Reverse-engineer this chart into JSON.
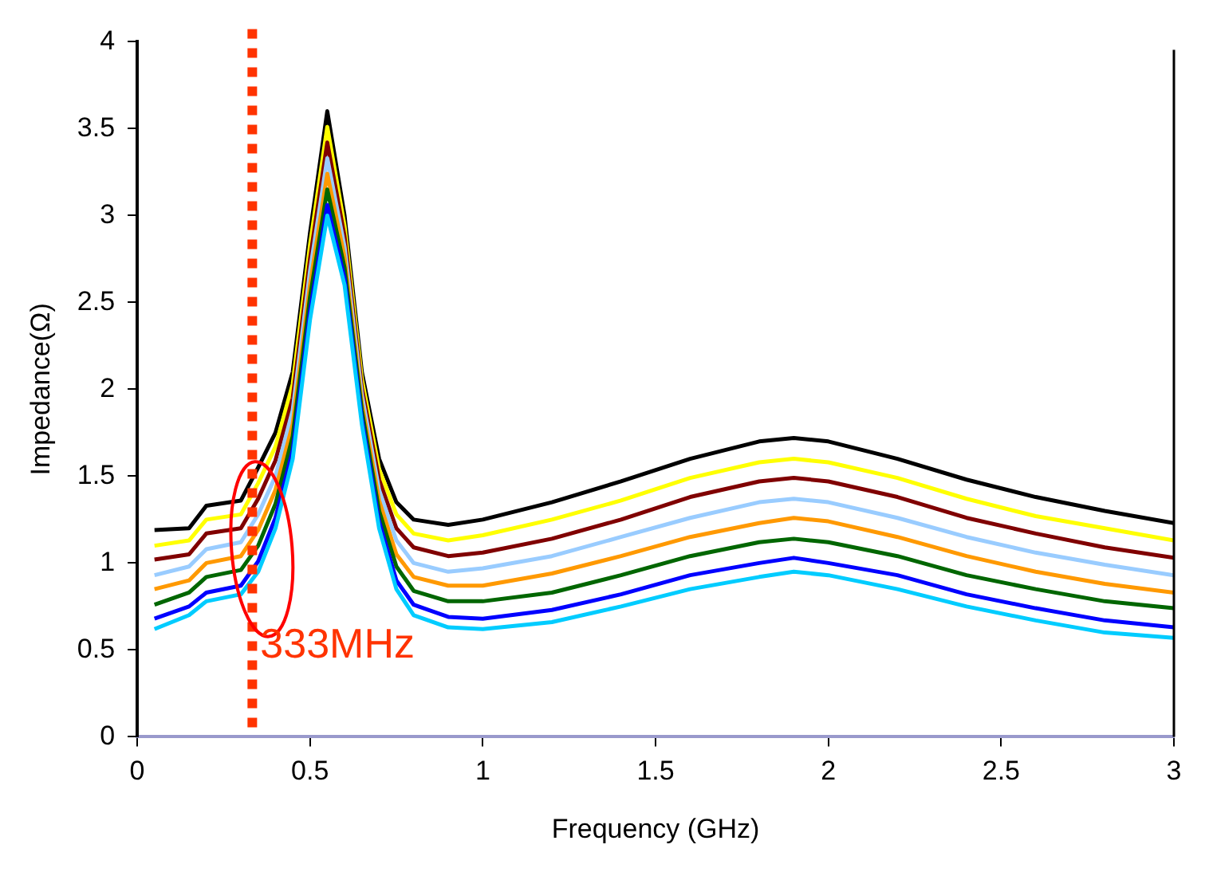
{
  "chart_data": {
    "type": "line",
    "xlabel": "Frequency (GHz)",
    "ylabel": "Impedance(Ω)",
    "x": [
      0.05,
      0.15,
      0.2,
      0.3,
      0.35,
      0.4,
      0.45,
      0.5,
      0.55,
      0.6,
      0.65,
      0.7,
      0.75,
      0.8,
      0.9,
      1.0,
      1.2,
      1.4,
      1.6,
      1.8,
      1.9,
      2.0,
      2.2,
      2.4,
      2.6,
      2.8,
      3.0
    ],
    "series": [
      {
        "color": "#000000",
        "values": [
          1.19,
          1.2,
          1.33,
          1.36,
          1.55,
          1.75,
          2.1,
          2.9,
          3.6,
          3.0,
          2.1,
          1.6,
          1.35,
          1.25,
          1.22,
          1.25,
          1.35,
          1.47,
          1.6,
          1.7,
          1.72,
          1.7,
          1.6,
          1.48,
          1.38,
          1.3,
          1.23
        ]
      },
      {
        "color": "#ffff00",
        "values": [
          1.1,
          1.13,
          1.25,
          1.28,
          1.46,
          1.67,
          2.03,
          2.83,
          3.51,
          2.94,
          2.06,
          1.54,
          1.28,
          1.17,
          1.13,
          1.16,
          1.25,
          1.36,
          1.49,
          1.58,
          1.6,
          1.58,
          1.49,
          1.37,
          1.27,
          1.2,
          1.13
        ]
      },
      {
        "color": "#800000",
        "values": [
          1.02,
          1.05,
          1.17,
          1.2,
          1.37,
          1.59,
          1.95,
          2.75,
          3.42,
          2.88,
          2.01,
          1.48,
          1.2,
          1.09,
          1.04,
          1.06,
          1.14,
          1.25,
          1.38,
          1.47,
          1.49,
          1.47,
          1.38,
          1.26,
          1.17,
          1.09,
          1.03
        ]
      },
      {
        "color": "#99ccff",
        "values": [
          0.93,
          0.98,
          1.08,
          1.12,
          1.28,
          1.5,
          1.88,
          2.68,
          3.33,
          2.82,
          1.97,
          1.42,
          1.13,
          1.0,
          0.95,
          0.97,
          1.04,
          1.15,
          1.26,
          1.35,
          1.37,
          1.35,
          1.26,
          1.15,
          1.06,
          0.99,
          0.93
        ]
      },
      {
        "color": "#ff9900",
        "values": [
          0.85,
          0.9,
          1.0,
          1.04,
          1.19,
          1.42,
          1.8,
          2.6,
          3.24,
          2.76,
          1.92,
          1.36,
          1.05,
          0.92,
          0.87,
          0.87,
          0.94,
          1.04,
          1.15,
          1.23,
          1.26,
          1.24,
          1.15,
          1.04,
          0.95,
          0.88,
          0.83
        ]
      },
      {
        "color": "#006600",
        "values": [
          0.76,
          0.83,
          0.92,
          0.96,
          1.1,
          1.34,
          1.73,
          2.53,
          3.15,
          2.7,
          1.88,
          1.3,
          0.98,
          0.84,
          0.78,
          0.78,
          0.83,
          0.93,
          1.04,
          1.12,
          1.14,
          1.12,
          1.04,
          0.93,
          0.85,
          0.78,
          0.74
        ]
      },
      {
        "color": "#0000ff",
        "values": [
          0.68,
          0.75,
          0.83,
          0.87,
          1.01,
          1.26,
          1.65,
          2.45,
          3.06,
          2.64,
          1.83,
          1.24,
          0.9,
          0.76,
          0.69,
          0.68,
          0.73,
          0.82,
          0.93,
          1.0,
          1.03,
          1.0,
          0.93,
          0.82,
          0.74,
          0.67,
          0.63
        ]
      },
      {
        "color": "#00ccff",
        "values": [
          0.62,
          0.7,
          0.78,
          0.82,
          0.95,
          1.2,
          1.6,
          2.4,
          3.0,
          2.6,
          1.8,
          1.2,
          0.85,
          0.7,
          0.63,
          0.62,
          0.66,
          0.75,
          0.85,
          0.92,
          0.95,
          0.93,
          0.85,
          0.75,
          0.67,
          0.6,
          0.57
        ]
      }
    ],
    "xlim": [
      0,
      3
    ],
    "xticks": [
      0,
      0.5,
      1,
      1.5,
      2,
      2.5,
      3
    ],
    "ylim": [
      0,
      4
    ],
    "yticks": [
      0,
      0.5,
      1,
      1.5,
      2,
      2.5,
      3,
      3.5,
      4
    ],
    "ref_lines": [
      {
        "axis": "x",
        "value": 0.333,
        "label": "333MHz",
        "color": "#ff3300",
        "line_style": "dotted"
      }
    ],
    "grid": false,
    "legend": false,
    "marker": "none",
    "line_style": "solid"
  }
}
